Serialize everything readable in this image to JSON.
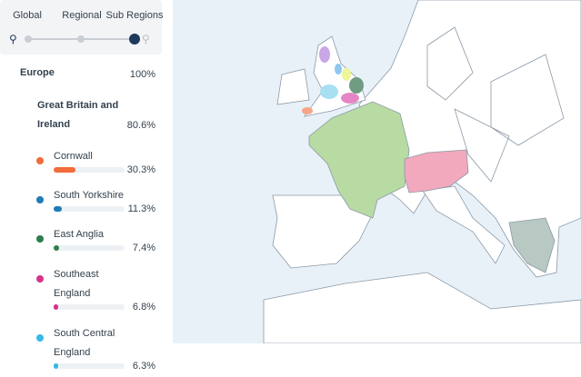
{
  "slider": {
    "labels": [
      "Global",
      "Regional",
      "Sub Regions"
    ]
  },
  "root": {
    "name": "Europe",
    "value": 100,
    "value_label": "100%"
  },
  "group": {
    "name": "Great Britain and Ireland",
    "value": 80.6,
    "value_label": "80.6%"
  },
  "items": [
    {
      "name": "Cornwall",
      "value": 30.3,
      "value_label": "30.3%",
      "color": "#f26b3a"
    },
    {
      "name": "South Yorkshire",
      "value": 11.3,
      "value_label": "11.3%",
      "color": "#1f7bb6"
    },
    {
      "name": "East Anglia",
      "value": 7.4,
      "value_label": "7.4%",
      "color": "#2e7d4f"
    },
    {
      "name": "Southeast England",
      "value": 6.8,
      "value_label": "6.8%",
      "color": "#d6338a"
    },
    {
      "name": "South Central England",
      "value": 6.3,
      "value_label": "6.3%",
      "color": "#35b9e6"
    }
  ]
}
